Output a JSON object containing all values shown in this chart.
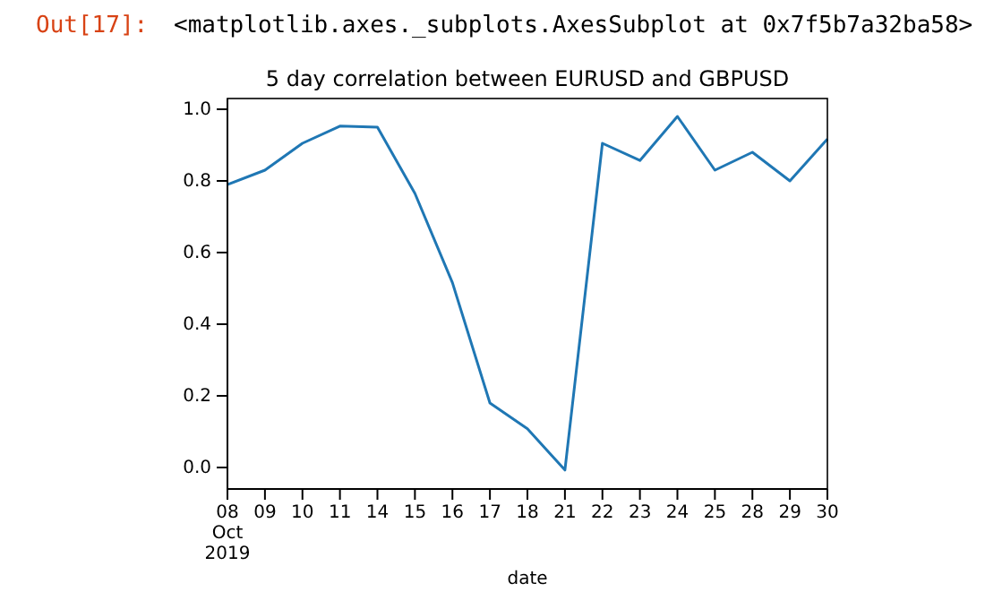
{
  "chart_data": {
    "type": "line",
    "title": "5 day correlation between EURUSD and GBPUSD",
    "xlabel": "date",
    "annotations": [
      "Out[17]:",
      "<matplotlib.axes._subplots.AxesSubplot at 0x7f5b7a32ba58>"
    ],
    "categories": [
      "08\nOct\n2019",
      "09",
      "10",
      "11",
      "14",
      "15",
      "16",
      "17",
      "18",
      "21",
      "22",
      "23",
      "24",
      "25",
      "28",
      "29",
      "30"
    ],
    "series": [
      {
        "color": "#1f77b4",
        "values": [
          0.79,
          0.83,
          0.905,
          0.953,
          0.95,
          0.765,
          0.516,
          0.18,
          0.108,
          -0.007,
          0.905,
          0.857,
          0.98,
          0.83,
          0.88,
          0.8,
          0.917
        ]
      }
    ],
    "ylim": [
      -0.06,
      1.03
    ],
    "yticks": [
      {
        "value": 0,
        "label": "0.0"
      },
      {
        "value": 0.2,
        "label": "0.2"
      },
      {
        "value": 0.4,
        "label": "0.4"
      },
      {
        "value": 0.6,
        "label": "0.6"
      },
      {
        "value": 0.8,
        "label": "0.8"
      },
      {
        "value": 1,
        "label": "1.0"
      }
    ],
    "marker": "none"
  }
}
